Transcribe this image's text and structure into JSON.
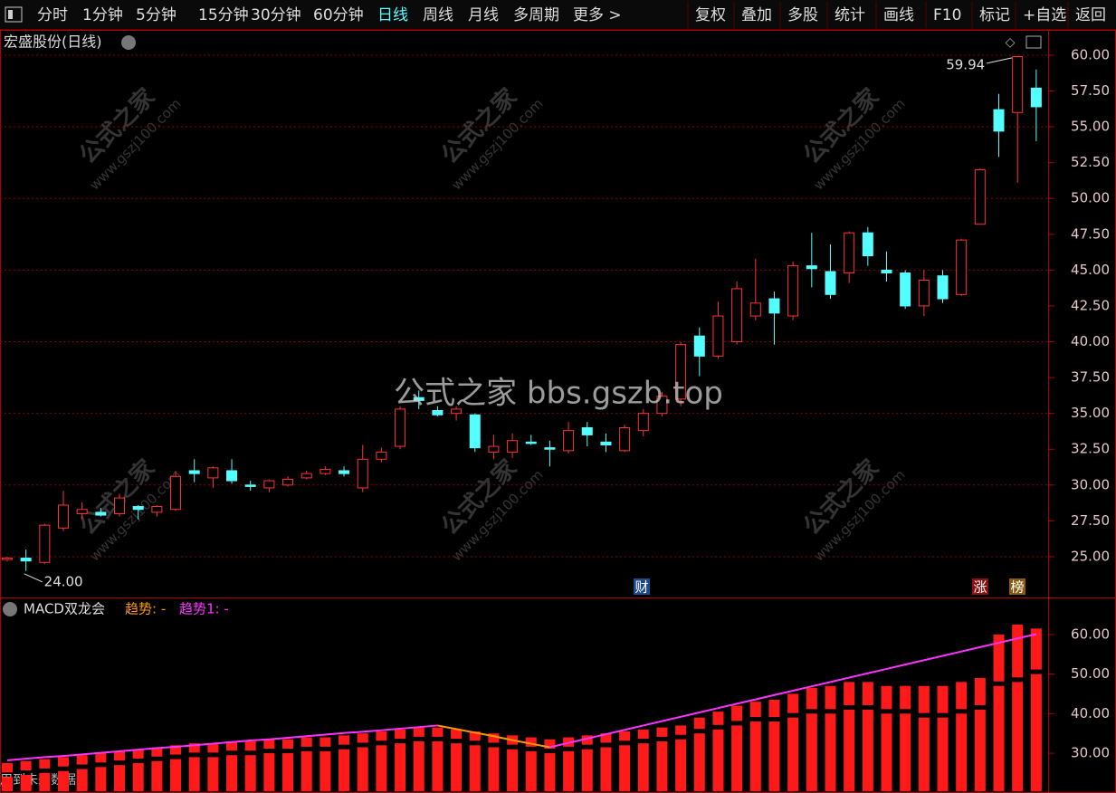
{
  "toolbar": {
    "left": [
      "分时",
      "1分钟",
      "5分钟",
      "15分钟",
      "30分钟",
      "60分钟",
      "日线",
      "周线",
      "月线",
      "多周期",
      "更多 >"
    ],
    "active": "日线",
    "right": [
      "复权",
      "叠加",
      "多股",
      "统计",
      "画线",
      "F10",
      "标记",
      "+自选",
      "返回"
    ]
  },
  "watermark": {
    "center": "公式之家 bbs.gszb.top",
    "tile_name": "公式之家",
    "tile_url": "www.gszj100.com"
  },
  "footer_note": "用到未来数据",
  "chart_data": [
    {
      "type": "candlestick",
      "title": "宏盛股份(日线)",
      "open": [
        24.8,
        24.9,
        24.6,
        27.0,
        28.0,
        28.1,
        28.0,
        28.5,
        28.1,
        28.3,
        31.0,
        30.5,
        31.0,
        30.0,
        29.8,
        30.0,
        30.5,
        30.8,
        31.0,
        29.8,
        31.8,
        32.7,
        36.1,
        35.2,
        35.0,
        34.9,
        32.3,
        32.3,
        33.0,
        32.6,
        32.4,
        34.0,
        33.0,
        32.4,
        33.8,
        35.0,
        36.0,
        40.4,
        39.0,
        40.0,
        41.8,
        43.0,
        41.8,
        45.3,
        44.9,
        44.8,
        47.6,
        45.0,
        44.8,
        42.5,
        44.6,
        43.3,
        48.2,
        56.2,
        56.0,
        57.7
      ],
      "high": [
        25.0,
        25.5,
        27.3,
        29.6,
        28.8,
        28.4,
        29.4,
        28.6,
        28.6,
        31.0,
        31.8,
        31.3,
        31.8,
        30.3,
        30.4,
        30.6,
        31.0,
        31.3,
        31.3,
        32.8,
        32.6,
        35.5,
        36.6,
        35.5,
        35.5,
        35.0,
        33.5,
        33.6,
        33.5,
        33.1,
        34.4,
        34.4,
        33.6,
        34.2,
        35.3,
        36.5,
        40.0,
        41.0,
        42.8,
        44.2,
        45.8,
        43.5,
        45.6,
        47.6,
        46.8,
        47.7,
        48.0,
        46.3,
        45.0,
        45.0,
        45.0,
        47.2,
        52.1,
        57.3,
        59.94,
        59.0
      ],
      "low": [
        24.7,
        24.0,
        24.5,
        26.8,
        27.6,
        27.8,
        27.8,
        27.6,
        27.8,
        28.2,
        30.2,
        29.8,
        30.1,
        29.6,
        29.5,
        29.9,
        30.4,
        30.7,
        30.6,
        29.5,
        31.6,
        32.5,
        35.3,
        34.8,
        34.5,
        32.3,
        31.8,
        31.9,
        32.8,
        31.3,
        32.2,
        32.7,
        32.3,
        32.3,
        33.4,
        34.8,
        35.5,
        37.6,
        38.8,
        39.8,
        41.5,
        39.8,
        41.5,
        43.8,
        43.0,
        44.1,
        45.3,
        44.2,
        42.3,
        41.8,
        42.7,
        43.2,
        48.2,
        52.9,
        51.1,
        54.0
      ],
      "close": [
        24.9,
        24.7,
        27.2,
        28.6,
        28.3,
        27.9,
        29.1,
        28.3,
        28.5,
        30.6,
        30.8,
        31.2,
        30.3,
        29.9,
        30.3,
        30.4,
        30.8,
        31.1,
        30.8,
        31.8,
        32.3,
        35.3,
        35.9,
        34.9,
        35.3,
        32.6,
        32.7,
        33.1,
        32.9,
        32.5,
        33.8,
        33.5,
        32.8,
        34.0,
        35.0,
        36.2,
        39.8,
        39.0,
        41.8,
        43.7,
        42.7,
        42.0,
        45.3,
        45.1,
        43.3,
        47.6,
        46.0,
        44.8,
        42.5,
        44.3,
        43.0,
        47.1,
        52.0,
        54.7,
        59.9,
        56.4
      ],
      "up_color": "#ff3232",
      "down_color": "#54ffff",
      "ylim": [
        22.28,
        61.64
      ],
      "yticks": [
        {
          "value": 25,
          "label": "25.00"
        },
        {
          "value": 27.5,
          "label": "27.50"
        },
        {
          "value": 30,
          "label": "30.00"
        },
        {
          "value": 32.5,
          "label": "32.50"
        },
        {
          "value": 35,
          "label": "35.00"
        },
        {
          "value": 37.5,
          "label": "37.50"
        },
        {
          "value": 40,
          "label": "40.00"
        },
        {
          "value": 42.5,
          "label": "42.50"
        },
        {
          "value": 45,
          "label": "45.00"
        },
        {
          "value": 47.5,
          "label": "47.50"
        },
        {
          "value": 50,
          "label": "50.00"
        },
        {
          "value": 52.5,
          "label": "52.50"
        },
        {
          "value": 55,
          "label": "55.00"
        },
        {
          "value": 57.5,
          "label": "57.50"
        },
        {
          "value": 60,
          "label": "60.00"
        }
      ],
      "grid": true,
      "max_mark": 59.94,
      "min_mark": {
        "value": 24,
        "label": "24.00"
      },
      "badges": [
        "财",
        "涨",
        "榜"
      ]
    },
    {
      "type": "indicator",
      "title": "MACD双龙会",
      "ylim": [
        20.4,
        68.9
      ],
      "yticks": [
        {
          "value": 30,
          "label": "30.00"
        },
        {
          "value": 40,
          "label": "40.00"
        },
        {
          "value": 50,
          "label": "50.00"
        },
        {
          "value": 60,
          "label": "60.00"
        }
      ],
      "bar_color": "#ff1a1a",
      "lower_bars": [
        24,
        24.5,
        25,
        25.5,
        26,
        26.5,
        27,
        27.5,
        28,
        28.5,
        29,
        29,
        29.5,
        29.5,
        30,
        30,
        30.5,
        30.5,
        31,
        31.5,
        32,
        32.5,
        33,
        33,
        32.5,
        32,
        31.5,
        31,
        30.5,
        30,
        30.5,
        31,
        31.5,
        32,
        32.5,
        33,
        33.5,
        35,
        36,
        37,
        38,
        38,
        39,
        40,
        40,
        41,
        41,
        40,
        40,
        39,
        39,
        40,
        41,
        47,
        48,
        50
      ],
      "upper_bars": [
        27.5,
        28,
        28.5,
        29,
        29.5,
        30,
        30.5,
        31,
        31.5,
        32,
        32.5,
        32.5,
        33,
        33,
        33.5,
        33.5,
        34,
        34,
        34.5,
        35,
        35.5,
        36,
        36.5,
        36.5,
        36,
        35.5,
        35,
        34.5,
        34,
        33.5,
        34,
        34.5,
        35,
        35.5,
        36,
        36.5,
        37,
        39,
        40.5,
        42,
        43,
        43.5,
        45,
        46.5,
        47,
        48,
        48,
        47,
        47,
        47,
        47,
        48,
        49,
        60,
        62.5,
        61.5
      ],
      "series": [
        {
          "name": "趋势: -",
          "color": "#ff9900",
          "values": [
            null,
            null,
            null,
            null,
            null,
            null,
            null,
            null,
            null,
            null,
            null,
            null,
            null,
            null,
            null,
            null,
            null,
            null,
            null,
            null,
            null,
            null,
            null,
            37.0,
            36.1,
            35.2,
            34.3,
            33.3,
            32.4,
            31.5,
            null,
            null,
            null,
            null,
            null,
            null,
            null,
            null,
            null,
            null,
            null,
            null,
            null,
            null,
            null,
            null,
            null,
            null,
            null,
            null,
            null,
            null,
            null,
            null,
            null,
            null
          ]
        },
        {
          "name": "趋势1: -",
          "color": "#ff33ff",
          "values": [
            28.2,
            28.6,
            29.0,
            29.3,
            29.7,
            30.1,
            30.5,
            30.9,
            31.3,
            31.6,
            32.0,
            32.4,
            32.8,
            33.2,
            33.5,
            33.9,
            34.3,
            34.7,
            35.1,
            35.4,
            35.8,
            36.2,
            36.6,
            37.0,
            null,
            null,
            null,
            null,
            null,
            31.5,
            32.6,
            33.7,
            34.8,
            35.9,
            37.0,
            38.1,
            39.2,
            40.3,
            41.4,
            42.5,
            43.6,
            44.7,
            45.8,
            46.9,
            48.0,
            49.1,
            50.2,
            51.3,
            52.4,
            53.5,
            54.6,
            55.7,
            56.8,
            57.9,
            59.0,
            60.1
          ]
        }
      ]
    }
  ]
}
